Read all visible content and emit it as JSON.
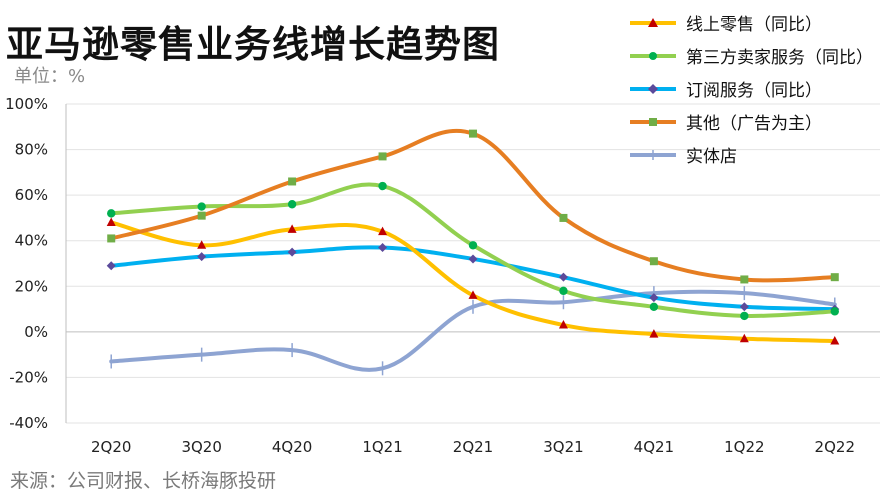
{
  "title": "亚马逊零售业务线增长趋势图",
  "unit_label": "单位：%",
  "source": "来源：公司财报、长桥海豚投研",
  "colors": {
    "line_retail": "#FFC000",
    "third_party": "#92D050",
    "subscription": "#00B0F0",
    "other_ads": "#E67E22",
    "physical": "#8EA4D2"
  },
  "chart_data": {
    "type": "line",
    "categories": [
      "2Q20",
      "3Q20",
      "4Q20",
      "1Q21",
      "2Q21",
      "3Q21",
      "4Q21",
      "1Q22",
      "2Q22"
    ],
    "ylim": [
      -40,
      100
    ],
    "yticks": [
      "100%",
      "80%",
      "60%",
      "40%",
      "20%",
      "0%",
      "-20%",
      "-40%"
    ],
    "grid": "y-major",
    "legend_position": "top-right",
    "series": [
      {
        "name": "线上零售（同比）",
        "color_key": "line_retail",
        "marker": "triangle",
        "values": [
          48,
          38,
          45,
          44,
          16,
          3,
          -1,
          -3,
          -4
        ]
      },
      {
        "name": "第三方卖家服务（同比）",
        "color_key": "third_party",
        "marker": "circle",
        "values": [
          52,
          55,
          56,
          64,
          38,
          18,
          11,
          7,
          9
        ]
      },
      {
        "name": "订阅服务（同比）",
        "color_key": "subscription",
        "marker": "diamond",
        "values": [
          29,
          33,
          35,
          37,
          32,
          24,
          15,
          11,
          10
        ]
      },
      {
        "name": "其他（广告为主）",
        "color_key": "other_ads",
        "marker": "square",
        "values": [
          41,
          51,
          66,
          77,
          87,
          50,
          31,
          23,
          24
        ]
      },
      {
        "name": "实体店",
        "color_key": "physical",
        "marker": "dash",
        "values": [
          -13,
          -10,
          -8,
          -16,
          11,
          13,
          17,
          17,
          12
        ]
      }
    ]
  }
}
